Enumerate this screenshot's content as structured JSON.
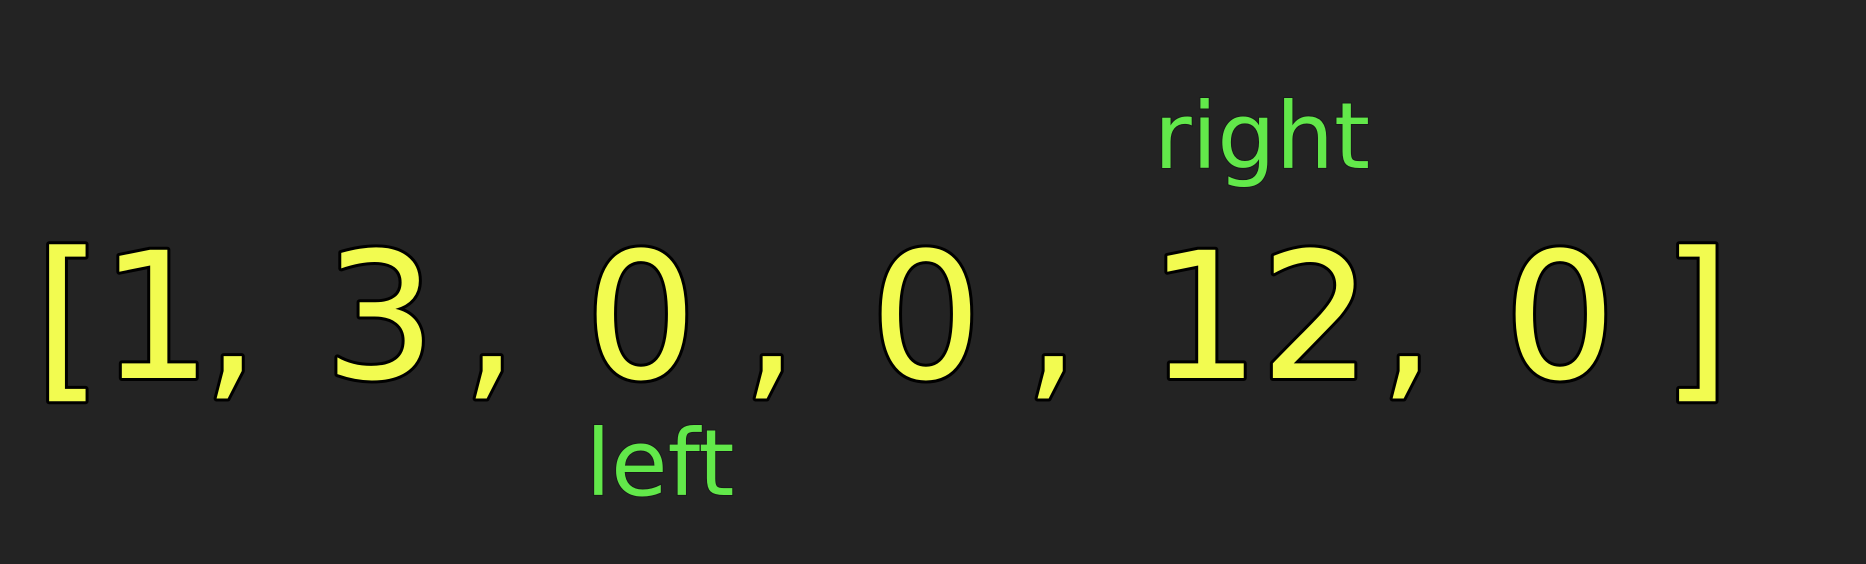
{
  "diagram": {
    "brackets": {
      "open": "[",
      "close": "]"
    },
    "separator": ",",
    "array": [
      "1",
      "3",
      "0",
      "0",
      "12",
      "0"
    ],
    "pointers": {
      "right": {
        "label": "right",
        "index": 4
      },
      "left": {
        "label": "left",
        "index": 2
      }
    },
    "colors": {
      "background": "#232323",
      "array_text": "#f2fb50",
      "pointer_text": "#62e84a"
    }
  }
}
